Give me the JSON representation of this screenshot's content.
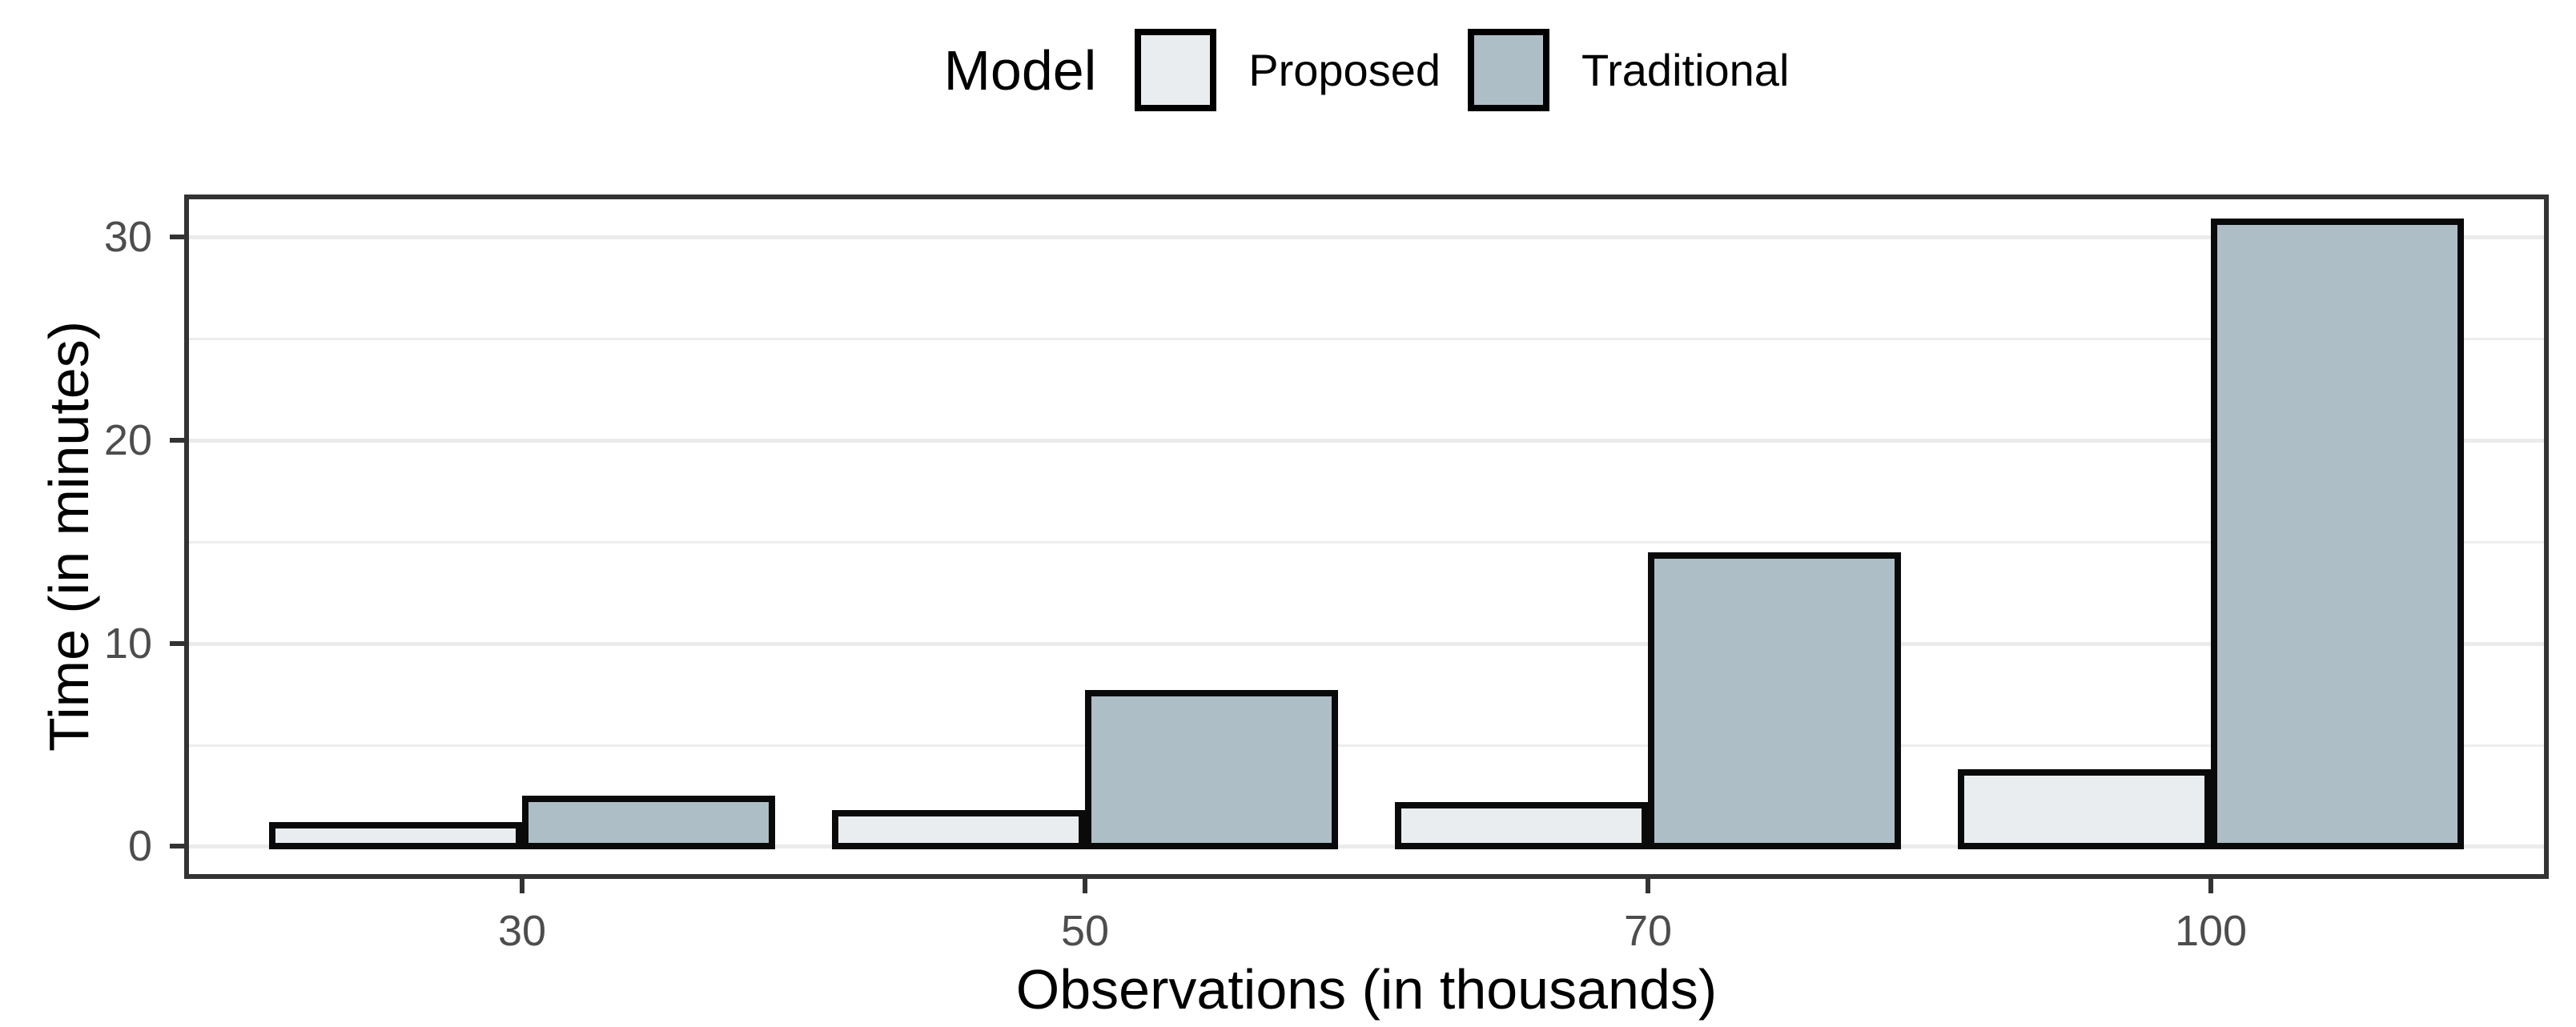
{
  "chart_data": {
    "type": "bar",
    "title": "",
    "legend_title": "Model",
    "legend_position": "top",
    "categories": [
      "30",
      "50",
      "70",
      "100"
    ],
    "series": [
      {
        "name": "Proposed",
        "color": "#e9edf0",
        "values": [
          1.2,
          1.8,
          2.2,
          3.8
        ]
      },
      {
        "name": "Traditional",
        "color": "#aebec6",
        "values": [
          2.5,
          7.7,
          14.5,
          30.9
        ]
      }
    ],
    "xlabel": "Observations (in thousands)",
    "ylabel": "Time (in minutes)",
    "y_ticks": [
      0,
      10,
      20,
      30
    ],
    "y_minor_ticks": [
      5,
      15,
      25
    ],
    "ylim": [
      -1.6,
      32.1
    ],
    "grid": true,
    "colors": {
      "bar_border": "#0a0a0a",
      "grid_major": "#ebebeb",
      "grid_minor": "#ededed",
      "panel_border": "#333333",
      "tick_mark": "#333333",
      "tick_label": "#4d4d4d",
      "axis_title": "#000000",
      "background": "#ffffff"
    }
  }
}
